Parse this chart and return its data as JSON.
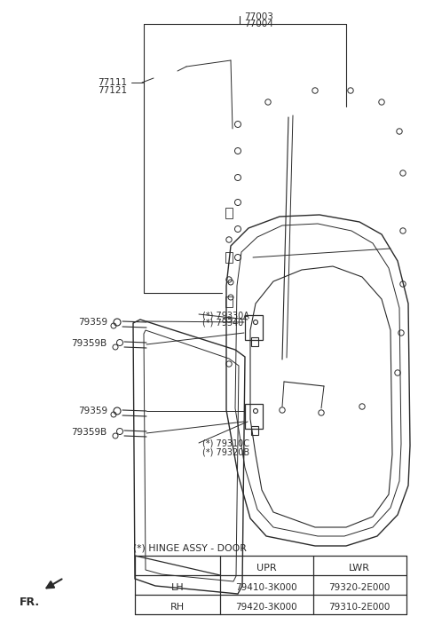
{
  "bg_color": "#ffffff",
  "line_color": "#2a2a2a",
  "thin_lw": 0.7,
  "med_lw": 1.0,
  "thick_lw": 1.2,
  "label_77003": "77003",
  "label_77004": "77004",
  "label_77111": "77111",
  "label_77121": "77121",
  "label_79330A": "(*) 79330A",
  "label_79340": "(*) 79340",
  "label_79359_1": "79359",
  "label_79359B_1": "79359B",
  "label_79359_2": "79359",
  "label_79359B_2": "79359B",
  "label_79310C": "(*) 79310C",
  "label_79320B": "(*) 79320B",
  "table_title": "(*) HINGE ASSY - DOOR",
  "table_headers": [
    "",
    "UPR",
    "LWR"
  ],
  "table_rows": [
    [
      "LH",
      "79410-3K000",
      "79320-2E000"
    ],
    [
      "RH",
      "79420-3K000",
      "79310-2E000"
    ]
  ],
  "fr_label": "FR."
}
